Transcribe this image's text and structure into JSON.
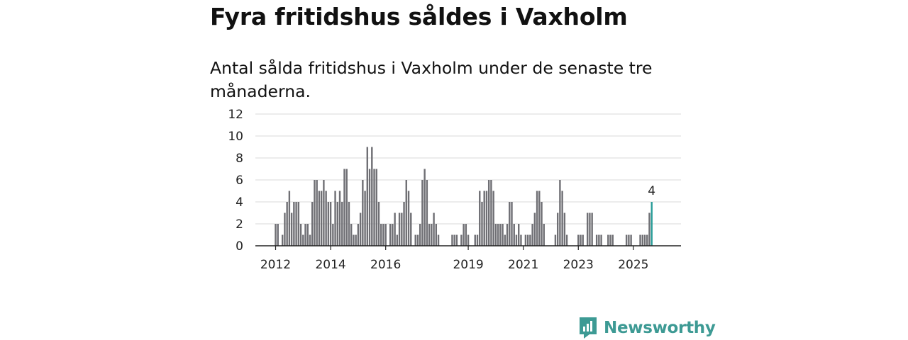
{
  "header": {
    "title": "Fyra fritidshus såldes i Vaxholm",
    "subtitle": "Antal sålda fritidshus i Vaxholm under de senaste tre månaderna."
  },
  "logo": {
    "text": "Newsworthy",
    "color": "#3d9a94"
  },
  "chart_data": {
    "type": "bar",
    "title": "",
    "xlabel": "",
    "ylabel": "",
    "ylim": [
      0,
      12
    ],
    "yticks": [
      "0",
      "2",
      "4",
      "6",
      "8",
      "10",
      "12"
    ],
    "xticks": [
      {
        "label": "2012",
        "year": 2012
      },
      {
        "label": "2014",
        "year": 2014
      },
      {
        "label": "2016",
        "year": 2016
      },
      {
        "label": "2019",
        "year": 2019
      },
      {
        "label": "2021",
        "year": 2021
      },
      {
        "label": "2023",
        "year": 2023
      },
      {
        "label": "2025",
        "year": 2025
      }
    ],
    "start_month": "2012-01",
    "grid": true,
    "bar_color": "#6f6f74",
    "highlight_color": "#2a9d99",
    "highlight_label": "4",
    "values": [
      2,
      2,
      0,
      1,
      3,
      4,
      5,
      3,
      4,
      4,
      4,
      2,
      1,
      2,
      2,
      1,
      4,
      6,
      6,
      5,
      5,
      6,
      5,
      4,
      4,
      2,
      5,
      4,
      5,
      4,
      7,
      7,
      4,
      2,
      1,
      1,
      2,
      3,
      6,
      5,
      9,
      7,
      9,
      7,
      7,
      4,
      2,
      2,
      2,
      0,
      2,
      2,
      3,
      1,
      3,
      3,
      4,
      6,
      5,
      3,
      0,
      1,
      1,
      2,
      6,
      7,
      6,
      2,
      2,
      3,
      2,
      1,
      0,
      0,
      0,
      0,
      0,
      1,
      1,
      1,
      0,
      1,
      2,
      2,
      1,
      0,
      0,
      1,
      1,
      5,
      4,
      5,
      5,
      6,
      6,
      5,
      2,
      2,
      2,
      2,
      1,
      2,
      4,
      4,
      2,
      1,
      2,
      1,
      0,
      1,
      1,
      1,
      2,
      3,
      5,
      5,
      4,
      2,
      0,
      0,
      0,
      0,
      1,
      3,
      6,
      5,
      3,
      1,
      0,
      0,
      0,
      0,
      1,
      1,
      1,
      0,
      3,
      3,
      3,
      0,
      1,
      1,
      1,
      0,
      0,
      1,
      1,
      1,
      0,
      0,
      0,
      0,
      0,
      1,
      1,
      1,
      0,
      0,
      0,
      1,
      1,
      1,
      1,
      3,
      4
    ]
  }
}
